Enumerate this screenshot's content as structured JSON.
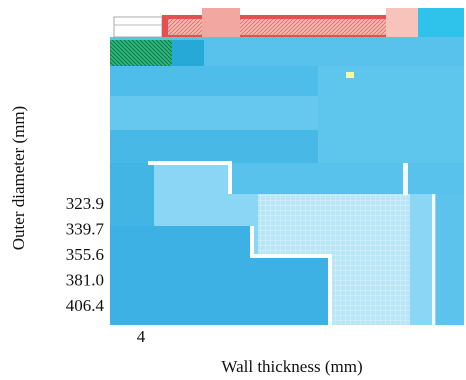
{
  "chart_data": {
    "type": "heatmap",
    "title": "",
    "xlabel": "Wall thickness (mm)",
    "ylabel": "Outer diameter (mm)",
    "x_tick_labels": [
      {
        "label": "4",
        "value": 4
      }
    ],
    "y_tick_labels": [
      "323.9",
      "339.7",
      "355.6",
      "381.0",
      "406.4"
    ],
    "legend": "none",
    "grid": false,
    "zones": [
      {
        "name": "deep",
        "color": "#3fb1e6"
      },
      {
        "name": "light",
        "color": "#7fd3f2"
      },
      {
        "name": "pale",
        "color": "#cdebfa"
      },
      {
        "name": "edge",
        "color": "#ffffff"
      },
      {
        "name": "red",
        "color": "#e2504f"
      },
      {
        "name": "green",
        "color": "#1f9a5c"
      },
      {
        "name": "pink",
        "color": "#f2a7a0"
      },
      {
        "name": "cyan",
        "color": "#2fc2ea"
      }
    ]
  }
}
